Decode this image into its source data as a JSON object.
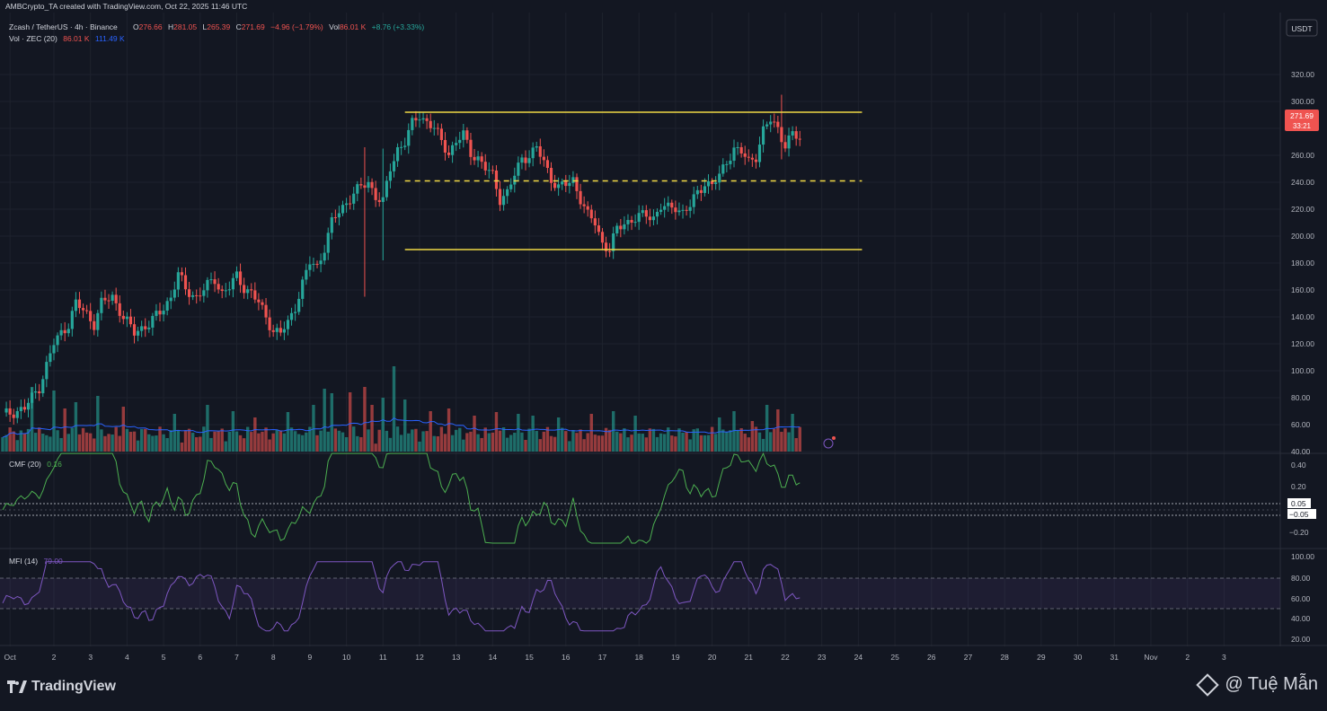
{
  "header": {
    "created_by": "AMBCrypto_TA created with TradingView.com, Oct 22, 2025 11:46 UTC",
    "symbol": "Zcash / TetherUS · 4h · Binance",
    "ohlc": {
      "o_label": "O",
      "o": "276.66",
      "h_label": "H",
      "h": "281.05",
      "l_label": "L",
      "l": "265.39",
      "c_label": "C",
      "c": "271.69",
      "change": "−4.96 (−1.79%)",
      "vol_label": "Vol",
      "vol": "86.01 K",
      "vol_change": "+8.76 (+3.33%)"
    },
    "vol_legend": {
      "label": "Vol · ZEC (20)",
      "value": "86.01 K",
      "ma": "111.49 K"
    }
  },
  "currency": "USDT",
  "price_badge": {
    "price": "271.69",
    "countdown": "33:21"
  },
  "cmf": {
    "label": "CMF (20)",
    "value": "0.16",
    "axis": [
      "0.40",
      "0.20",
      "0.05",
      "−0.05",
      "−0.20"
    ]
  },
  "mfi": {
    "label": "MFI (14)",
    "value": "79.00",
    "axis": [
      "100.00",
      "80.00",
      "60.00",
      "40.00",
      "20.00"
    ]
  },
  "colors": {
    "up": "#26a69a",
    "down": "#ef5350",
    "level": "#f0d844",
    "vol_ma": "#2962ff",
    "cmf": "#4caf50",
    "mfi": "#7e57c2",
    "background": "#131722"
  },
  "branding": {
    "logo": "TradingView",
    "watermark": "@ Tuệ Mẫn"
  },
  "chart_data": {
    "type": "candlestick",
    "price_axis": {
      "ylim": [
        40,
        320
      ],
      "ticks": [
        "320.00",
        "300.00",
        "280.00",
        "260.00",
        "240.00",
        "220.00",
        "200.00",
        "180.00",
        "160.00",
        "140.00",
        "120.00",
        "100.00",
        "80.00",
        "60.00",
        "40.00"
      ]
    },
    "x_ticks": [
      {
        "label": "Oct",
        "i": 2
      },
      {
        "label": "2",
        "i": 14
      },
      {
        "label": "3",
        "i": 24
      },
      {
        "label": "4",
        "i": 34
      },
      {
        "label": "5",
        "i": 44
      },
      {
        "label": "6",
        "i": 54
      },
      {
        "label": "7",
        "i": 64
      },
      {
        "label": "8",
        "i": 74
      },
      {
        "label": "9",
        "i": 84
      },
      {
        "label": "10",
        "i": 94
      },
      {
        "label": "11",
        "i": 104
      },
      {
        "label": "12",
        "i": 114
      },
      {
        "label": "13",
        "i": 124
      },
      {
        "label": "14",
        "i": 134
      },
      {
        "label": "15",
        "i": 144
      },
      {
        "label": "16",
        "i": 154
      },
      {
        "label": "17",
        "i": 164
      },
      {
        "label": "18",
        "i": 174
      },
      {
        "label": "19",
        "i": 184
      },
      {
        "label": "20",
        "i": 194
      },
      {
        "label": "21",
        "i": 204
      },
      {
        "label": "22",
        "i": 214
      },
      {
        "label": "23",
        "i": 224
      },
      {
        "label": "24",
        "i": 234
      },
      {
        "label": "25",
        "i": 244
      },
      {
        "label": "26",
        "i": 254
      },
      {
        "label": "27",
        "i": 264
      },
      {
        "label": "28",
        "i": 274
      },
      {
        "label": "29",
        "i": 284
      },
      {
        "label": "30",
        "i": 294
      },
      {
        "label": "31",
        "i": 304
      },
      {
        "label": "Nov",
        "i": 314
      },
      {
        "label": "2",
        "i": 324
      },
      {
        "label": "3",
        "i": 334
      }
    ],
    "levels": [
      {
        "name": "range-top",
        "price": 292,
        "style": "solid",
        "from_i": 110,
        "to_i": 235
      },
      {
        "name": "range-mid",
        "price": 241,
        "style": "dashed",
        "from_i": 110,
        "to_i": 235
      },
      {
        "name": "range-bottom",
        "price": 190,
        "style": "solid",
        "from_i": 110,
        "to_i": 235
      }
    ],
    "waypoints": [
      [
        0,
        67
      ],
      [
        6,
        72
      ],
      [
        10,
        88
      ],
      [
        14,
        120
      ],
      [
        16,
        128
      ],
      [
        18,
        135
      ],
      [
        20,
        150
      ],
      [
        23,
        142
      ],
      [
        25,
        135
      ],
      [
        27,
        150
      ],
      [
        30,
        155
      ],
      [
        33,
        140
      ],
      [
        36,
        128
      ],
      [
        38,
        132
      ],
      [
        40,
        135
      ],
      [
        43,
        143
      ],
      [
        46,
        155
      ],
      [
        48,
        172
      ],
      [
        50,
        160
      ],
      [
        53,
        155
      ],
      [
        56,
        163
      ],
      [
        58,
        168
      ],
      [
        60,
        158
      ],
      [
        62,
        162
      ],
      [
        64,
        170
      ],
      [
        66,
        162
      ],
      [
        68,
        158
      ],
      [
        70,
        150
      ],
      [
        72,
        140
      ],
      [
        74,
        130
      ],
      [
        76,
        128
      ],
      [
        78,
        135
      ],
      [
        80,
        148
      ],
      [
        82,
        165
      ],
      [
        84,
        180
      ],
      [
        86,
        177
      ],
      [
        88,
        192
      ],
      [
        90,
        210
      ],
      [
        92,
        218
      ],
      [
        94,
        225
      ],
      [
        96,
        232
      ],
      [
        98,
        236
      ],
      [
        100,
        240
      ],
      [
        102,
        230
      ],
      [
        104,
        225
      ],
      [
        106,
        250
      ],
      [
        108,
        265
      ],
      [
        110,
        270
      ],
      [
        112,
        283
      ],
      [
        114,
        290
      ],
      [
        116,
        285
      ],
      [
        118,
        280
      ],
      [
        120,
        270
      ],
      [
        122,
        262
      ],
      [
        124,
        270
      ],
      [
        126,
        275
      ],
      [
        128,
        262
      ],
      [
        130,
        258
      ],
      [
        132,
        250
      ],
      [
        134,
        245
      ],
      [
        136,
        228
      ],
      [
        138,
        232
      ],
      [
        140,
        245
      ],
      [
        142,
        258
      ],
      [
        144,
        260
      ],
      [
        146,
        265
      ],
      [
        148,
        255
      ],
      [
        150,
        243
      ],
      [
        152,
        236
      ],
      [
        154,
        238
      ],
      [
        156,
        242
      ],
      [
        158,
        228
      ],
      [
        160,
        215
      ],
      [
        162,
        210
      ],
      [
        164,
        195
      ],
      [
        166,
        190
      ],
      [
        168,
        205
      ],
      [
        170,
        210
      ],
      [
        172,
        212
      ],
      [
        174,
        214
      ],
      [
        176,
        216
      ],
      [
        178,
        214
      ],
      [
        180,
        222
      ],
      [
        182,
        220
      ],
      [
        184,
        222
      ],
      [
        186,
        218
      ],
      [
        188,
        222
      ],
      [
        190,
        232
      ],
      [
        192,
        240
      ],
      [
        194,
        238
      ],
      [
        196,
        244
      ],
      [
        198,
        256
      ],
      [
        200,
        265
      ],
      [
        202,
        262
      ],
      [
        204,
        255
      ],
      [
        206,
        260
      ],
      [
        208,
        278
      ],
      [
        210,
        286
      ],
      [
        212,
        280
      ],
      [
        214,
        268
      ],
      [
        216,
        275
      ],
      [
        218,
        272
      ]
    ],
    "spikes": [
      [
        99,
        266,
        155
      ],
      [
        104,
        265,
        182
      ],
      [
        213,
        305,
        257
      ]
    ],
    "volume": {
      "ylim": [
        0,
        140
      ],
      "base": 40,
      "big": [
        [
          8,
          72
        ],
        [
          14,
          68
        ],
        [
          17,
          48
        ],
        [
          20,
          55
        ],
        [
          26,
          62
        ],
        [
          33,
          50
        ],
        [
          47,
          42
        ],
        [
          56,
          52
        ],
        [
          63,
          45
        ],
        [
          69,
          38
        ],
        [
          78,
          44
        ],
        [
          85,
          52
        ],
        [
          88,
          70
        ],
        [
          90,
          65
        ],
        [
          95,
          66
        ],
        [
          99,
          72
        ],
        [
          101,
          52
        ],
        [
          104,
          60
        ],
        [
          107,
          95
        ],
        [
          110,
          58
        ],
        [
          117,
          45
        ],
        [
          122,
          48
        ],
        [
          129,
          40
        ],
        [
          135,
          44
        ],
        [
          141,
          42
        ],
        [
          145,
          40
        ],
        [
          152,
          38
        ],
        [
          161,
          42
        ],
        [
          167,
          45
        ],
        [
          173,
          40
        ],
        [
          196,
          38
        ],
        [
          200,
          45
        ],
        [
          205,
          34
        ],
        [
          209,
          52
        ],
        [
          212,
          47
        ],
        [
          216,
          42
        ],
        [
          219,
          44
        ]
      ]
    }
  }
}
